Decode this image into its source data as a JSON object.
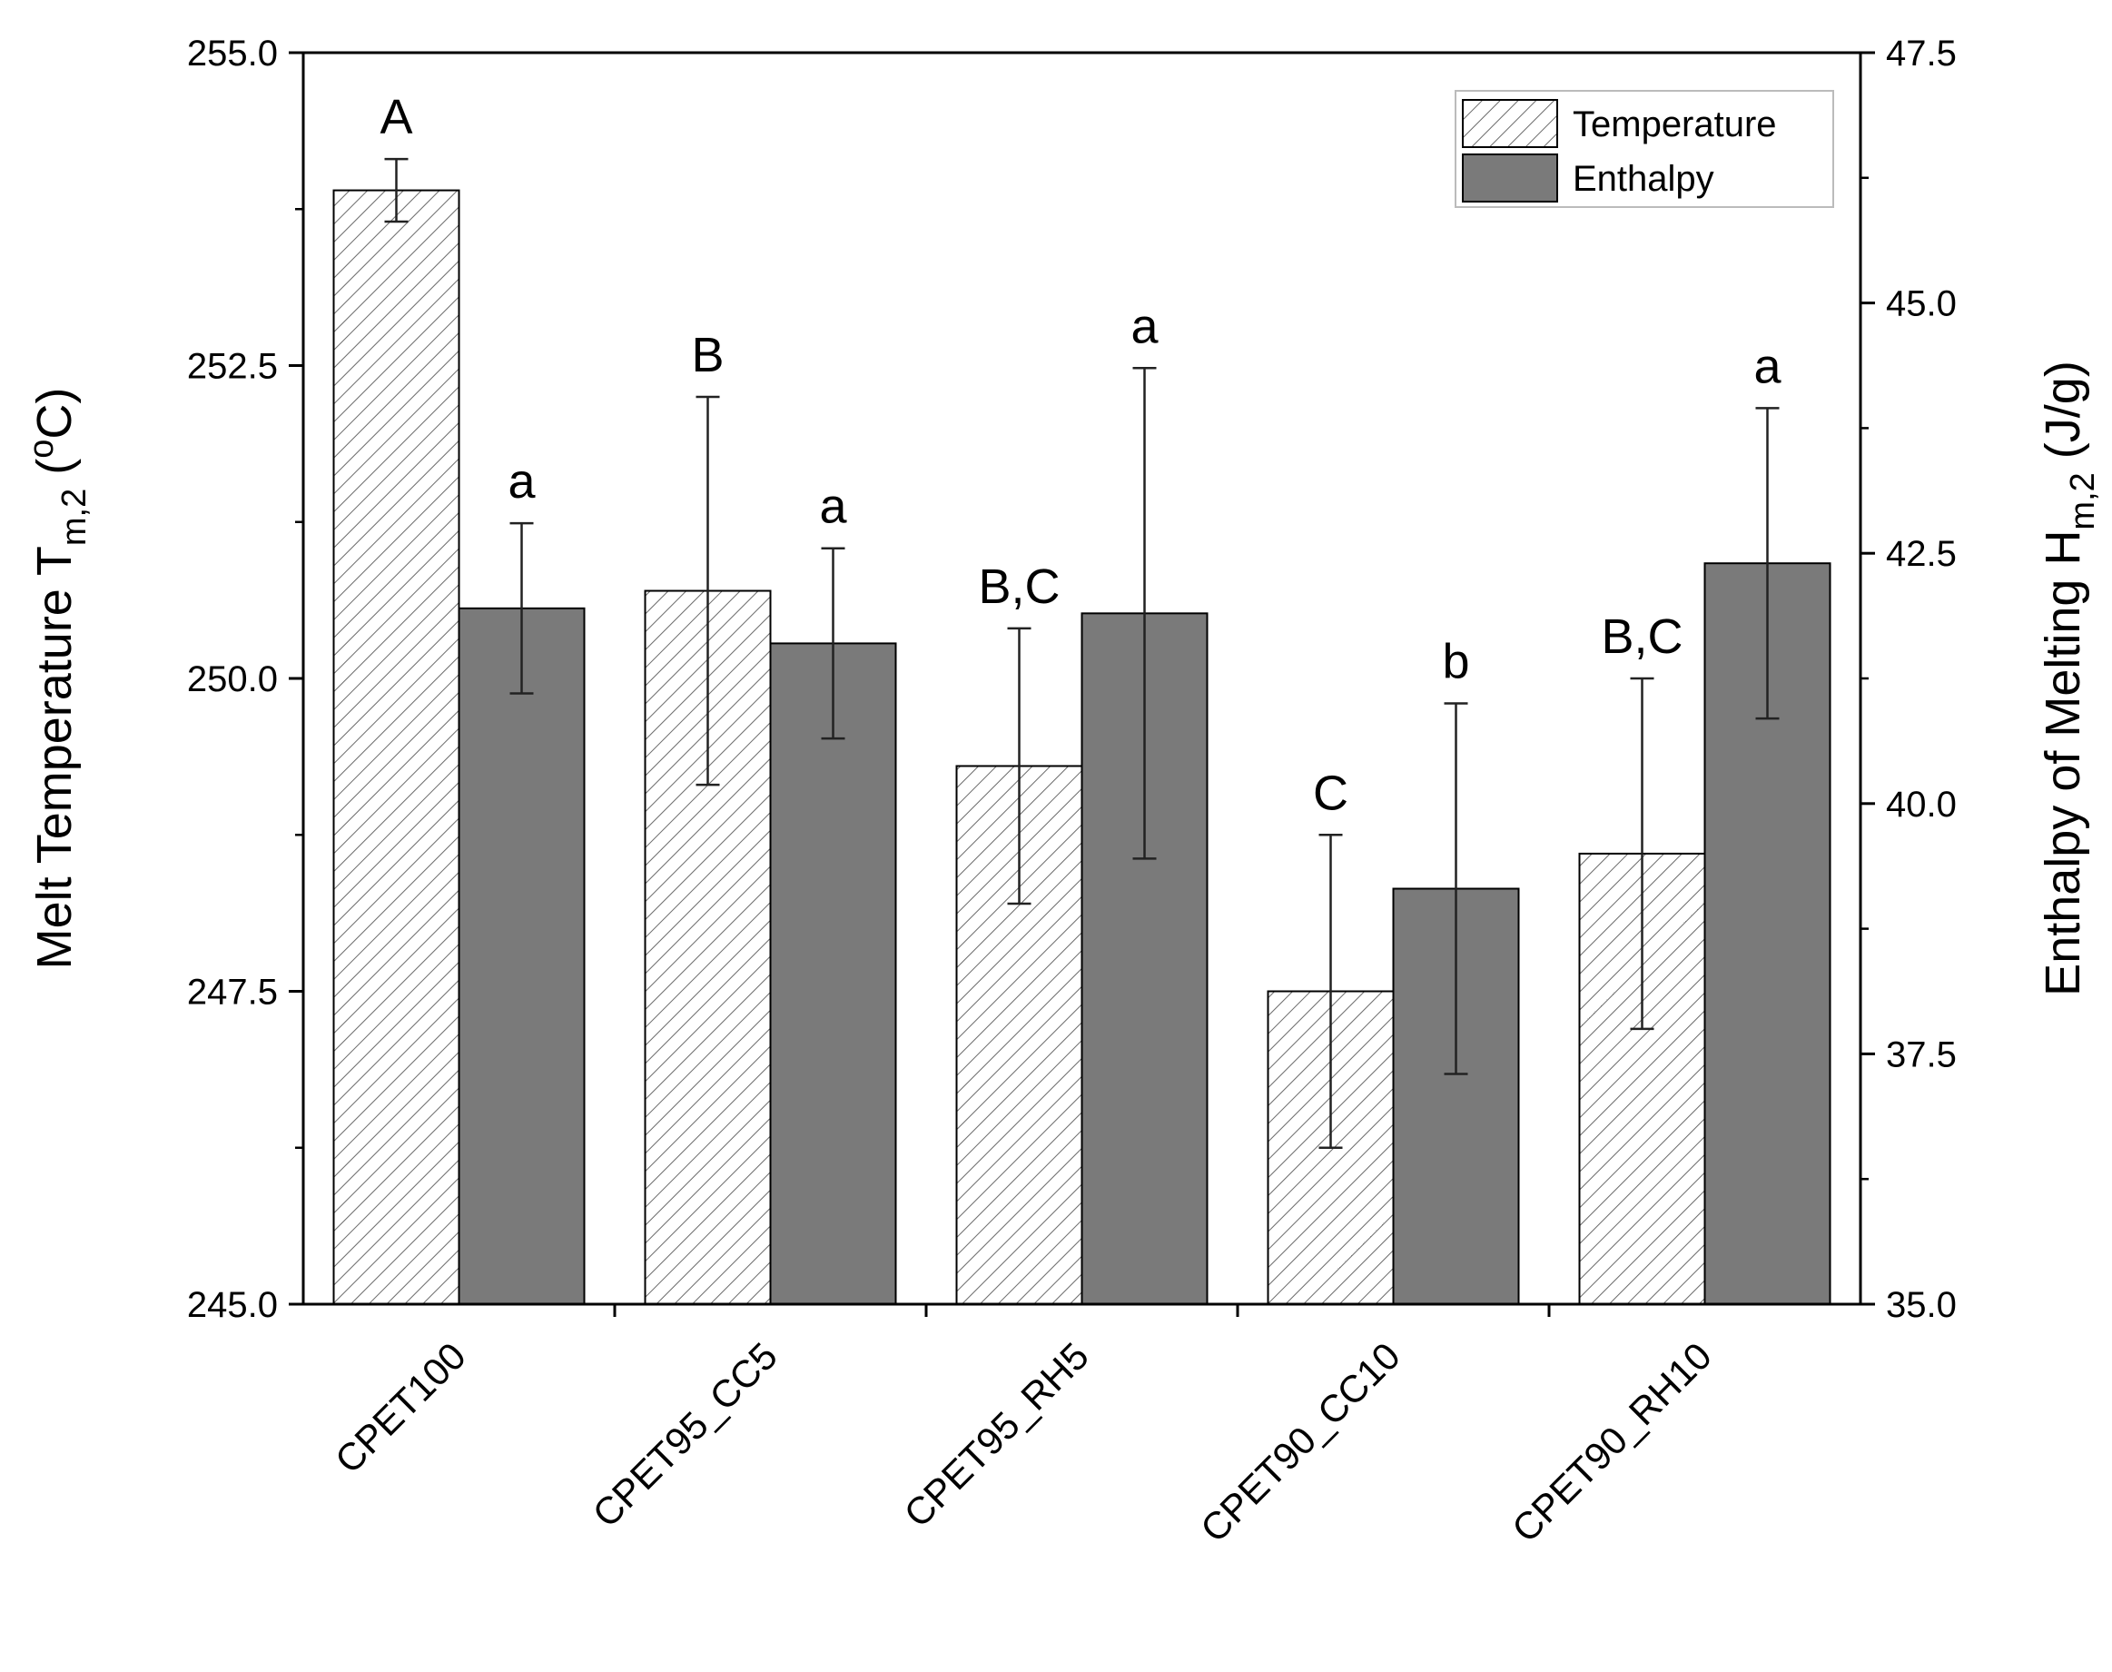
{
  "chart_data": {
    "type": "bar",
    "categories": [
      "CPET100",
      "CPET95_CC5",
      "CPET95_RH5",
      "CPET90_CC10",
      "CPET90_RH10"
    ],
    "series": [
      {
        "name": "Temperature",
        "axis": "left",
        "pattern": "hatched",
        "values": [
          253.9,
          250.7,
          249.3,
          247.5,
          248.6
        ],
        "errors": [
          0.25,
          1.55,
          1.1,
          1.25,
          1.4
        ],
        "group_letters": [
          "A",
          "B",
          "B,C",
          "C",
          "B,C"
        ]
      },
      {
        "name": "Enthalpy",
        "axis": "right",
        "pattern": "solid",
        "color": "#7a7a7a",
        "values": [
          41.95,
          41.6,
          41.9,
          39.15,
          42.4
        ],
        "errors": [
          0.85,
          0.95,
          2.45,
          1.85,
          1.55
        ],
        "group_letters": [
          "a",
          "a",
          "a",
          "b",
          "a"
        ]
      }
    ],
    "y_left": {
      "label_main": "Melt Temperature T",
      "label_sub": "m,2",
      "label_open": " (",
      "label_sup": "o",
      "label_close": "C)",
      "ylim": [
        245.0,
        255.0
      ],
      "ticks": [
        "245.0",
        "247.5",
        "250.0",
        "252.5",
        "255.0"
      ]
    },
    "y_right": {
      "label_main": "Enthalpy of Melting H",
      "label_sub": "m,2",
      "label_close": " (J/g)",
      "ylim": [
        35.0,
        47.5
      ],
      "ticks": [
        "35.0",
        "37.5",
        "40.0",
        "42.5",
        "45.0",
        "47.5"
      ]
    },
    "legend": {
      "position": "top-right",
      "entries": [
        "Temperature",
        "Enthalpy"
      ]
    }
  }
}
